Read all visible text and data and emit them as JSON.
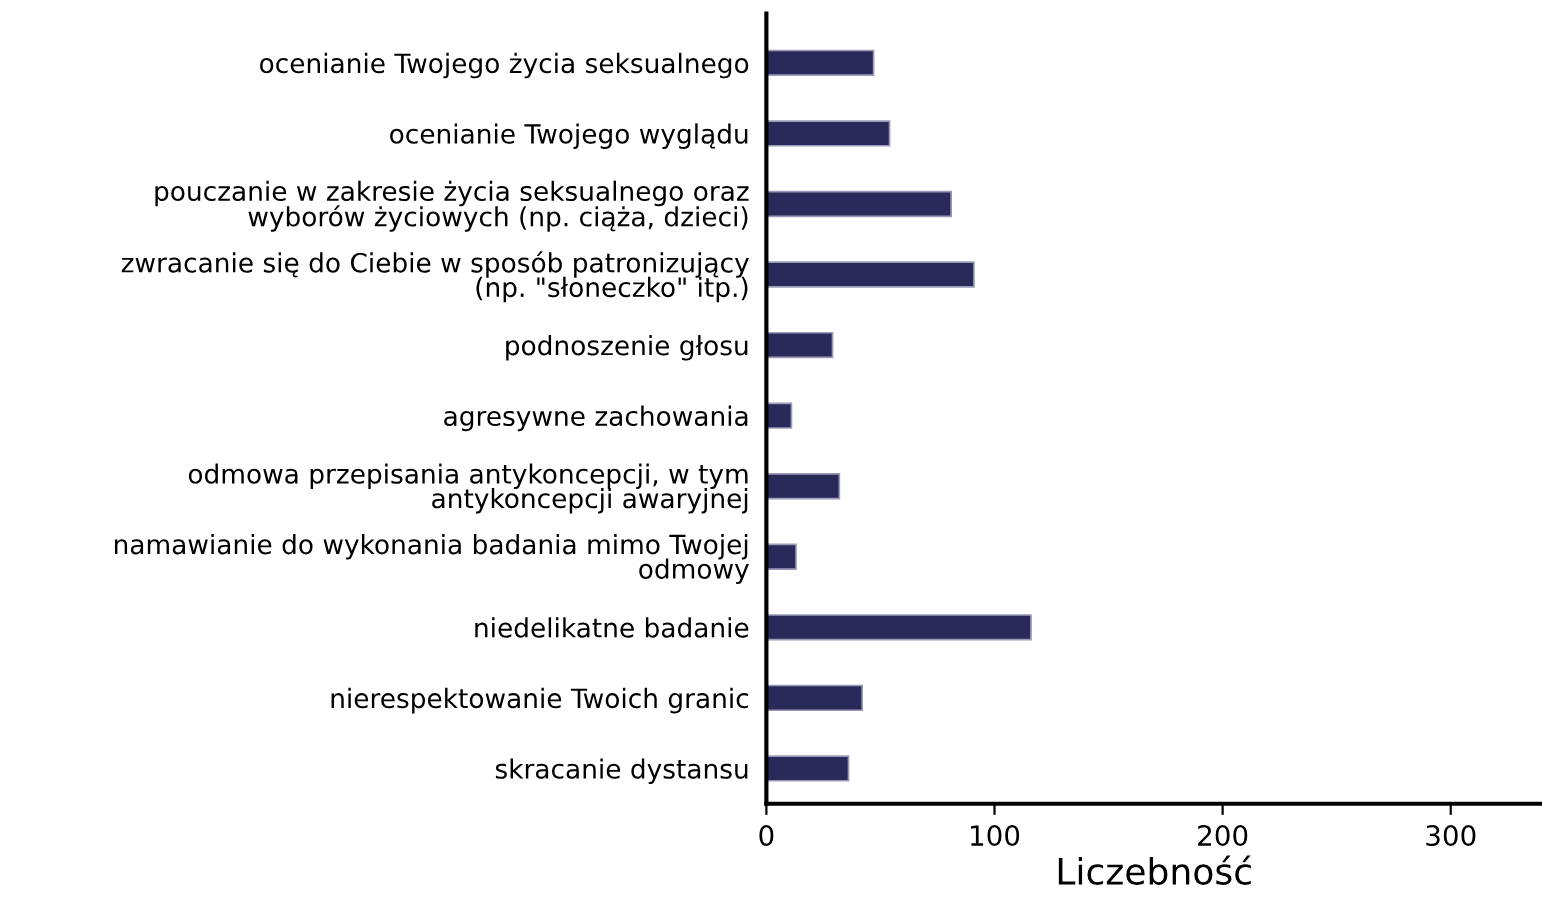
{
  "chart_data": {
    "type": "bar",
    "orientation": "horizontal",
    "xlabel": "Liczebność",
    "categories": [
      "ocenianie Twojego życia seksualnego",
      "ocenianie Twojego wyglądu",
      "pouczanie w zakresie życia seksualnego oraz\nwyborów życiowych (np. ciąża, dzieci)",
      "zwracanie się do Ciebie w sposób patronizujący\n(np. \"słoneczko\" itp.)",
      "podnoszenie głosu",
      "agresywne zachowania",
      "odmowa przepisania antykoncepcji, w tym\nantykoncepcji awaryjnej",
      "namawianie do wykonania badania mimo Twojej\nodmowy",
      "niedelikatne badanie",
      "nierespektowanie Twoich granic",
      "skracanie dystansu"
    ],
    "values": [
      47,
      54,
      81,
      91,
      29,
      11,
      32,
      13,
      116,
      42,
      36
    ],
    "color": "#2a2a5a",
    "xlim": [
      0,
      340
    ],
    "xticks": [
      0,
      100,
      200,
      300
    ],
    "grid": false,
    "legend": false
  }
}
